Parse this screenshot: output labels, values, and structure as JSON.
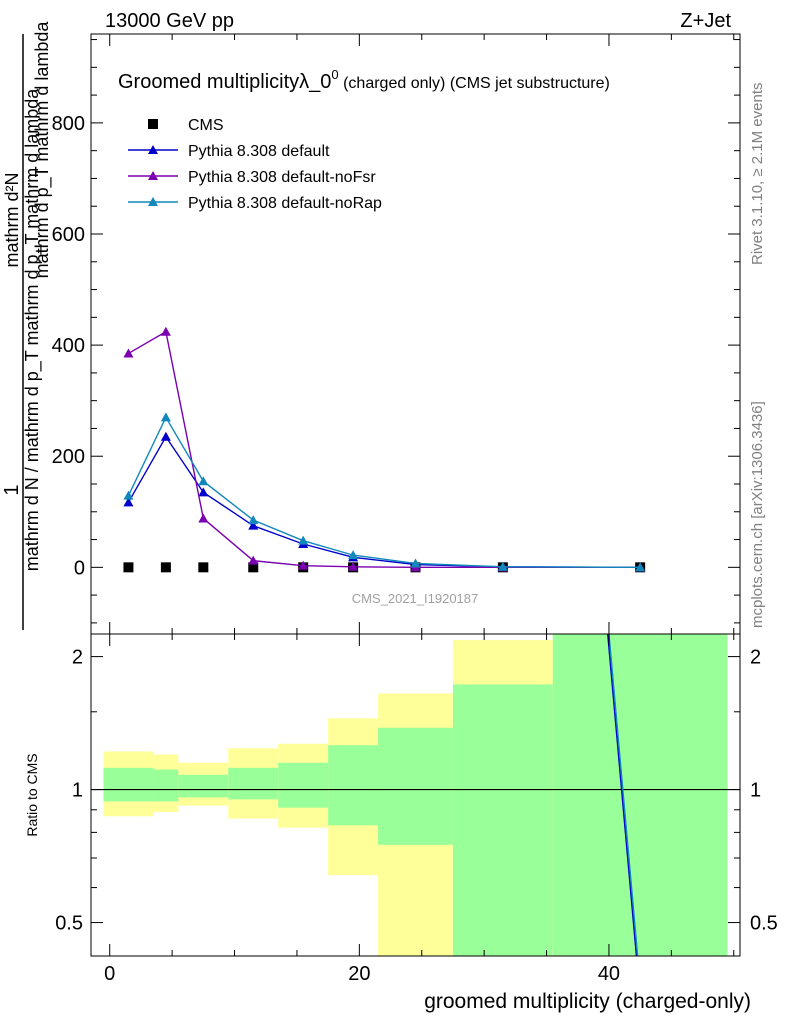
{
  "header": {
    "left": "13000 GeV pp",
    "right": "Z+Jet"
  },
  "side_labels": {
    "rivet": "Rivet 3.1.10, ≥ 2.1M events",
    "mcplots": "mcplots.cern.ch [arXiv:1306.3436]"
  },
  "watermark": "CMS_2021_I1920187",
  "colors": {
    "cms": "#000000",
    "default": "#0000cc",
    "noFsr": "#7a00b0",
    "noRap": "#1188bb",
    "band_inner": "#99ff99",
    "band_outer": "#ffff99"
  },
  "chart_data": [
    {
      "type": "line",
      "title": "Groomed multiplicityλ_0",
      "title_sup": "0",
      "title_suffix": " (charged only) (CMS jet substructure)",
      "ylabel_num": "mathrm d²N",
      "ylabel_den": "mathrm d p_T mathrm d lambda",
      "ylabel_main": "mathrm d N / mathrm d p_T mathrm d p_T mathrm d lambda",
      "ylabel_frac_num": "1",
      "ylim": [
        -120,
        960
      ],
      "yticks": [
        0,
        200,
        400,
        600,
        800
      ],
      "xlim": [
        -1.5,
        50.5
      ],
      "legend_position": "top-left",
      "x": [
        1.5,
        4.5,
        7.5,
        11.5,
        15.5,
        19.5,
        24.5,
        31.5,
        42.5
      ],
      "series": [
        {
          "name": "CMS",
          "marker": "square",
          "color_key": "cms",
          "values": [
            0,
            0,
            0,
            0,
            0,
            0,
            0,
            0,
            0
          ]
        },
        {
          "name": "Pythia 8.308 default",
          "marker": "triangle",
          "color_key": "default",
          "values": [
            117,
            235,
            135,
            75,
            42,
            18,
            5,
            1,
            0
          ]
        },
        {
          "name": "Pythia 8.308 default-noFsr",
          "marker": "triangle",
          "color_key": "noFsr",
          "values": [
            385,
            424,
            88,
            12,
            3,
            1,
            0,
            0,
            0
          ]
        },
        {
          "name": "Pythia 8.308 default-noRap",
          "marker": "triangle",
          "color_key": "noRap",
          "values": [
            129,
            270,
            155,
            85,
            48,
            22,
            7,
            1,
            0
          ]
        }
      ]
    },
    {
      "type": "line",
      "ylabel": "Ratio to CMS",
      "xlabel": "groomed multiplicity (charged-only)",
      "ylim": [
        0.42,
        2.25
      ],
      "yticks": [
        0.5,
        1,
        2
      ],
      "xticks": [
        0,
        20,
        40
      ],
      "xlim": [
        -1.5,
        50.5
      ],
      "bins": [
        {
          "lo": -0.5,
          "hi": 3.5,
          "in_lo": 0.94,
          "in_hi": 1.12,
          "out_lo": 0.87,
          "out_hi": 1.22
        },
        {
          "lo": 3.5,
          "hi": 5.5,
          "in_lo": 0.94,
          "in_hi": 1.11,
          "out_lo": 0.89,
          "out_hi": 1.2
        },
        {
          "lo": 5.5,
          "hi": 9.5,
          "in_lo": 0.96,
          "in_hi": 1.08,
          "out_lo": 0.92,
          "out_hi": 1.15
        },
        {
          "lo": 9.5,
          "hi": 13.5,
          "in_lo": 0.95,
          "in_hi": 1.12,
          "out_lo": 0.86,
          "out_hi": 1.24
        },
        {
          "lo": 13.5,
          "hi": 17.5,
          "in_lo": 0.91,
          "in_hi": 1.15,
          "out_lo": 0.82,
          "out_hi": 1.27
        },
        {
          "lo": 17.5,
          "hi": 21.5,
          "in_lo": 0.83,
          "in_hi": 1.26,
          "out_lo": 0.64,
          "out_hi": 1.45
        },
        {
          "lo": 21.5,
          "hi": 27.5,
          "in_lo": 0.75,
          "in_hi": 1.38,
          "out_lo": 0.42,
          "out_hi": 1.65
        },
        {
          "lo": 27.5,
          "hi": 35.5,
          "in_lo": 0.42,
          "in_hi": 1.73,
          "out_lo": 0.42,
          "out_hi": 2.18
        },
        {
          "lo": 35.5,
          "hi": 49.5,
          "in_lo": 0.42,
          "in_hi": 2.25,
          "out_lo": 0.42,
          "out_hi": 2.25
        }
      ],
      "ratio_lines": [
        {
          "color_key": "default",
          "points": [
            [
              39.9,
              2.25
            ],
            [
              42.2,
              0.42
            ]
          ]
        },
        {
          "color_key": "noRap",
          "points": [
            [
              40.0,
              2.25
            ],
            [
              42.3,
              0.42
            ]
          ]
        }
      ]
    }
  ]
}
